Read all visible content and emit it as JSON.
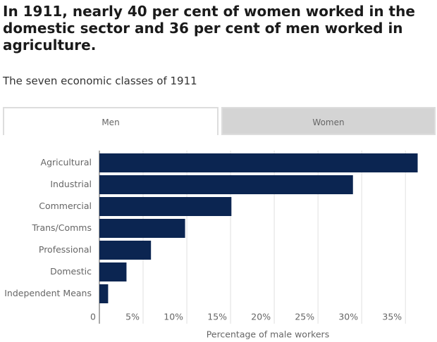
{
  "tabs": [
    "Men",
    "Women"
  ],
  "chart_data": {
    "type": "bar",
    "orientation": "horizontal",
    "title": "In 1911, nearly 40 per cent of women worked in the domestic sector and 36 per cent of men worked in agriculture.",
    "subtitle": "The seven economic classes of 1911",
    "x_label": "Percentage of male workers",
    "categories": [
      "Agricultural",
      "Industrial",
      "Commercial",
      "Trans/Comms",
      "Professional",
      "Domestic",
      "Independent Means"
    ],
    "values": [
      36.4,
      29.0,
      15.1,
      9.8,
      5.9,
      3.1,
      1.0
    ],
    "color": "#0b2551",
    "xlim": [
      0,
      37
    ],
    "xticks": [
      0,
      {
        "value": 5,
        "label": "5%"
      },
      {
        "value": 10,
        "label": "10%"
      },
      {
        "value": 15,
        "label": "15%"
      },
      {
        "value": 20,
        "label": "20%"
      },
      {
        "value": 25,
        "label": "25%"
      },
      {
        "value": 30,
        "label": "30%"
      },
      {
        "value": 35,
        "label": "35%"
      }
    ],
    "grid": true
  }
}
